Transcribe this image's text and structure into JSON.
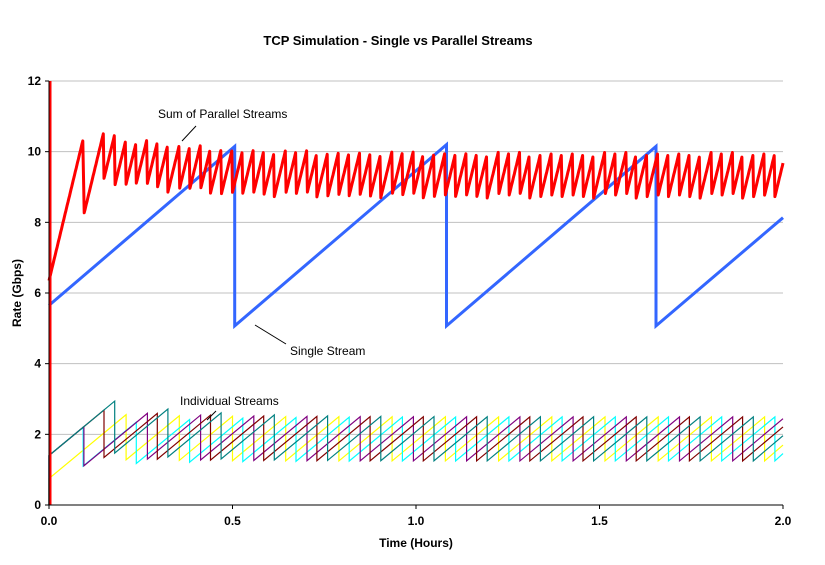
{
  "chart_data": {
    "type": "line",
    "title": "TCP Simulation - Single vs Parallel Streams",
    "xlabel": "Time (Hours)",
    "ylabel": "Rate (Gbps)",
    "xlim": [
      0,
      2.0
    ],
    "ylim": [
      0,
      12
    ],
    "x_ticks": [
      "0.0",
      "0.5",
      "1.0",
      "1.5",
      "2.0"
    ],
    "x_tick_values": [
      0,
      0.5,
      1.0,
      1.5,
      2.0
    ],
    "y_ticks": [
      "0",
      "2",
      "4",
      "6",
      "8",
      "10",
      "12"
    ],
    "y_tick_values": [
      0,
      2,
      4,
      6,
      8,
      10,
      12
    ],
    "grid": "horizontal",
    "grid_color": "#c0c0c0",
    "annotations": [
      {
        "text": "Sum of Parallel Streams",
        "points_to": [
          0.37,
          10.2
        ]
      },
      {
        "text": "Single Stream",
        "points_to": [
          0.56,
          5.1
        ]
      },
      {
        "text": "Individual Streams",
        "points_to": [
          0.44,
          2.4
        ]
      }
    ],
    "single_stream": {
      "color": "#3366ff",
      "points": [
        [
          0,
          5.65
        ],
        [
          0.506,
          10.15
        ],
        [
          0.506,
          5.07
        ],
        [
          1.083,
          10.2
        ],
        [
          1.083,
          5.07
        ],
        [
          1.654,
          10.15
        ],
        [
          1.654,
          5.07
        ],
        [
          2.0,
          8.13
        ]
      ]
    },
    "individual_streams": [
      {
        "color": "#ffff00",
        "start": 0.75,
        "slope": 8.6,
        "drop_factor": 0.5,
        "drop_times": [
          0.21,
          0.355,
          0.5,
          0.645,
          0.79,
          0.935,
          1.08,
          1.225,
          1.37,
          1.515,
          1.66,
          1.805,
          1.95
        ]
      },
      {
        "color": "#00ffff",
        "start": 1.4,
        "slope": 8.6,
        "drop_factor": 0.5,
        "drop_times": [
          0.093,
          0.238,
          0.383,
          0.528,
          0.673,
          0.818,
          0.963,
          1.108,
          1.253,
          1.398,
          1.543,
          1.688,
          1.833,
          1.978
        ]
      },
      {
        "color": "#800080",
        "start": 1.4,
        "slope": 8.6,
        "drop_factor": 0.5,
        "drop_times": [
          0.095,
          0.268,
          0.413,
          0.558,
          0.703,
          0.848,
          0.993,
          1.138,
          1.283,
          1.428,
          1.573,
          1.718,
          1.863
        ]
      },
      {
        "color": "#800000",
        "start": 1.4,
        "slope": 8.6,
        "drop_factor": 0.5,
        "drop_times": [
          0.15,
          0.295,
          0.44,
          0.585,
          0.73,
          0.875,
          1.02,
          1.165,
          1.31,
          1.455,
          1.6,
          1.745,
          1.89
        ]
      },
      {
        "color": "#008080",
        "start": 1.4,
        "slope": 8.6,
        "drop_factor": 0.5,
        "drop_times": [
          0.179,
          0.324,
          0.469,
          0.614,
          0.759,
          0.904,
          1.049,
          1.194,
          1.339,
          1.484,
          1.629,
          1.774,
          1.919
        ]
      }
    ],
    "sum_stream": {
      "color": "#ff0000",
      "initial_spike": 12
    }
  }
}
